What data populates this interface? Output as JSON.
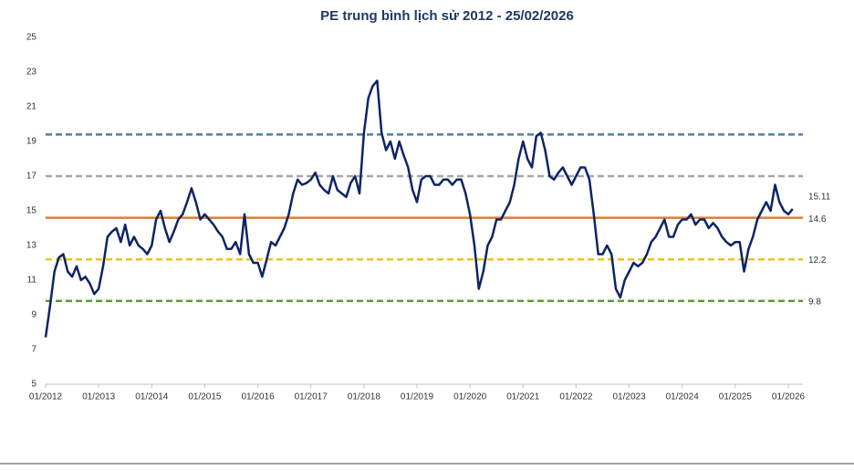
{
  "chart_data": {
    "type": "line",
    "title": "PE trung bình lịch sử 2012 - 25/02/2026",
    "x": [
      "01/2012",
      "02/2012",
      "03/2012",
      "04/2012",
      "05/2012",
      "06/2012",
      "07/2012",
      "08/2012",
      "09/2012",
      "10/2012",
      "11/2012",
      "12/2012",
      "01/2013",
      "02/2013",
      "03/2013",
      "04/2013",
      "05/2013",
      "06/2013",
      "07/2013",
      "08/2013",
      "09/2013",
      "10/2013",
      "11/2013",
      "12/2013",
      "01/2014",
      "02/2014",
      "03/2014",
      "04/2014",
      "05/2014",
      "06/2014",
      "07/2014",
      "08/2014",
      "09/2014",
      "10/2014",
      "11/2014",
      "12/2014",
      "01/2015",
      "02/2015",
      "03/2015",
      "04/2015",
      "05/2015",
      "06/2015",
      "07/2015",
      "08/2015",
      "09/2015",
      "10/2015",
      "11/2015",
      "12/2015",
      "01/2016",
      "02/2016",
      "03/2016",
      "04/2016",
      "05/2016",
      "06/2016",
      "07/2016",
      "08/2016",
      "09/2016",
      "10/2016",
      "11/2016",
      "12/2016",
      "01/2017",
      "02/2017",
      "03/2017",
      "04/2017",
      "05/2017",
      "06/2017",
      "07/2017",
      "08/2017",
      "09/2017",
      "10/2017",
      "11/2017",
      "12/2017",
      "01/2018",
      "02/2018",
      "03/2018",
      "04/2018",
      "05/2018",
      "06/2018",
      "07/2018",
      "08/2018",
      "09/2018",
      "10/2018",
      "11/2018",
      "12/2018",
      "01/2019",
      "02/2019",
      "03/2019",
      "04/2019",
      "05/2019",
      "06/2019",
      "07/2019",
      "08/2019",
      "09/2019",
      "10/2019",
      "11/2019",
      "12/2019",
      "01/2020",
      "02/2020",
      "03/2020",
      "04/2020",
      "05/2020",
      "06/2020",
      "07/2020",
      "08/2020",
      "09/2020",
      "10/2020",
      "11/2020",
      "12/2020",
      "01/2021",
      "02/2021",
      "03/2021",
      "04/2021",
      "05/2021",
      "06/2021",
      "07/2021",
      "08/2021",
      "09/2021",
      "10/2021",
      "11/2021",
      "12/2021",
      "01/2022",
      "02/2022",
      "03/2022",
      "04/2022",
      "05/2022",
      "06/2022",
      "07/2022",
      "08/2022",
      "09/2022",
      "10/2022",
      "11/2022",
      "12/2022",
      "01/2023",
      "02/2023",
      "03/2023",
      "04/2023",
      "05/2023",
      "06/2023",
      "07/2023",
      "08/2023",
      "09/2023",
      "10/2023",
      "11/2023",
      "12/2023",
      "01/2024",
      "02/2024",
      "03/2024",
      "04/2024",
      "05/2024",
      "06/2024",
      "07/2024",
      "08/2024",
      "09/2024",
      "10/2024",
      "11/2024",
      "12/2024",
      "01/2025",
      "02/2025",
      "03/2025",
      "04/2025",
      "05/2025",
      "06/2025",
      "07/2025",
      "08/2025",
      "09/2025",
      "10/2025",
      "11/2025",
      "12/2025",
      "01/2026",
      "02/2026"
    ],
    "series": [
      {
        "color": "#0d2466",
        "values": [
          7.7,
          9.5,
          11.5,
          12.3,
          12.5,
          11.5,
          11.2,
          11.8,
          11.0,
          11.2,
          10.8,
          10.2,
          10.5,
          11.8,
          13.5,
          13.8,
          14.0,
          13.2,
          14.2,
          13.0,
          13.5,
          13.0,
          12.8,
          12.5,
          13.0,
          14.5,
          15.0,
          14.0,
          13.2,
          13.8,
          14.5,
          14.8,
          15.5,
          16.3,
          15.5,
          14.5,
          14.8,
          14.5,
          14.2,
          13.8,
          13.5,
          12.8,
          12.8,
          13.2,
          12.5,
          14.8,
          12.5,
          12.0,
          12.0,
          11.2,
          12.2,
          13.2,
          13.0,
          13.5,
          14.0,
          14.8,
          16.0,
          16.8,
          16.5,
          16.6,
          16.8,
          17.2,
          16.5,
          16.2,
          16.0,
          17.0,
          16.2,
          16.0,
          15.8,
          16.6,
          17.0,
          16.0,
          19.5,
          21.5,
          22.2,
          22.5,
          19.5,
          18.5,
          19.0,
          18.0,
          19.0,
          18.2,
          17.5,
          16.2,
          15.5,
          16.8,
          17.0,
          17.0,
          16.5,
          16.5,
          16.8,
          16.8,
          16.5,
          16.8,
          16.8,
          16.0,
          14.8,
          13.0,
          10.5,
          11.5,
          13.0,
          13.5,
          14.5,
          14.5,
          15.0,
          15.5,
          16.5,
          18.0,
          19.0,
          18.0,
          17.5,
          19.3,
          19.5,
          18.5,
          17.0,
          16.8,
          17.2,
          17.5,
          17.0,
          16.5,
          17.0,
          17.5,
          17.5,
          16.8,
          14.8,
          12.5,
          12.5,
          13.0,
          12.5,
          10.5,
          10.0,
          11.0,
          11.5,
          12.0,
          11.8,
          12.0,
          12.5,
          13.2,
          13.5,
          14.0,
          14.5,
          13.5,
          13.5,
          14.2,
          14.5,
          14.5,
          14.8,
          14.2,
          14.5,
          14.5,
          14.0,
          14.3,
          14.0,
          13.5,
          13.2,
          13.0,
          13.2,
          13.2,
          11.5,
          12.8,
          13.5,
          14.5,
          15.0,
          15.5,
          15.0,
          16.5,
          15.5,
          15.0,
          14.8,
          15.11
        ]
      }
    ],
    "ylim": [
      5,
      25
    ],
    "yticks": [
      5,
      7,
      9,
      11,
      13,
      15,
      17,
      19,
      21,
      23,
      25
    ],
    "xticks": [
      "01/2012",
      "01/2013",
      "01/2014",
      "01/2015",
      "01/2016",
      "01/2017",
      "01/2018",
      "01/2019",
      "01/2020",
      "01/2021",
      "01/2022",
      "01/2023",
      "01/2024",
      "01/2025",
      "01/2026"
    ],
    "reference_lines": [
      {
        "value": 19.4,
        "color": "#4a7fb0",
        "dashed": true
      },
      {
        "value": 17.0,
        "color": "#a6a6a6",
        "dashed": true
      },
      {
        "value": 14.6,
        "color": "#e67a30",
        "dashed": false,
        "labeled": true
      },
      {
        "value": 12.2,
        "color": "#f0c419",
        "dashed": true,
        "labeled": true
      },
      {
        "value": 9.8,
        "color": "#5d9a3a",
        "dashed": true,
        "labeled": true
      }
    ],
    "last_value_label": true
  }
}
